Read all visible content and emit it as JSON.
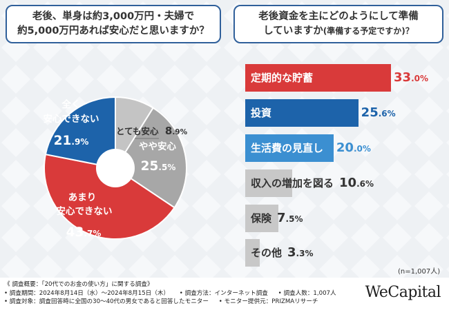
{
  "questions": {
    "left": [
      "老後、単身は約3,000万円・夫婦で",
      "約5,000万円あれば安心だと思いますか？"
    ],
    "right_line1": "老後資金を主にどのようにして準備",
    "right_line2_main": "していますか",
    "right_line2_sub": "(準備する予定ですか)？"
  },
  "chart_data": [
    {
      "type": "pie",
      "title": "老後、単身は約3,000万円・夫婦で約5,000万円あれば安心だと思いますか？",
      "slices": [
        {
          "label": "とても安心",
          "value": 8.9,
          "value_int": "8",
          "value_dec": ".9%",
          "color": "#c4c4c4"
        },
        {
          "label": "やや安心",
          "value": 25.5,
          "value_int": "25",
          "value_dec": ".5%",
          "color": "#a7a7a7"
        },
        {
          "label": "あまり安心できない",
          "value": 43.7,
          "value_int": "43",
          "value_dec": ".7%",
          "color": "#d93a3a"
        },
        {
          "label": "全く安心できない",
          "value": 21.9,
          "value_int": "21",
          "value_dec": ".9%",
          "color": "#1d63aa"
        }
      ],
      "label_lines": {
        "slice1": [
          "やや安心"
        ],
        "slice2": [
          "あまり",
          "安心できない"
        ],
        "slice3": [
          "全く",
          "安心できない"
        ]
      }
    },
    {
      "type": "bar",
      "orientation": "horizontal",
      "title": "老後資金を主にどのようにして準備していますか(準備する予定ですか)？",
      "categories": [
        "定期的な貯蓄",
        "投資",
        "生活費の見直し",
        "収入の増加を図る",
        "保険",
        "その他"
      ],
      "values": [
        33.0,
        25.6,
        20.0,
        10.6,
        7.5,
        3.3
      ],
      "value_ints": [
        "33",
        "25",
        "20",
        "10",
        "7",
        "3"
      ],
      "value_decs": [
        ".0%",
        ".6%",
        ".0%",
        ".6%",
        ".5%",
        ".3%"
      ],
      "colors": [
        "#d93a3a",
        "#1d63aa",
        "#3b8fd1",
        "#c8c8c8",
        "#c8c8c8",
        "#c8c8c8"
      ],
      "value_colors": [
        "#d93a3a",
        "#1d63aa",
        "#3b8fd1",
        "#333333",
        "#333333",
        "#333333"
      ],
      "xlim": [
        0,
        33.0
      ]
    }
  ],
  "sample_note": "(n=1,007人)",
  "footer": {
    "overview": "《 調査概要：「20代でのお金の使い方」に関する調査》",
    "period": "• 調査期間：2024年8月14日（水）～2024年8月15日（木）",
    "method": "• 調査方法：インターネット調査",
    "count": "• 調査人数：1,007人",
    "target": "• 調査対象：調査回答時に全国の30～40代の男女であると回答したモニター",
    "provider": "• モニター提供元：PRIZMAリサーチ"
  },
  "logo": "WeCapital"
}
